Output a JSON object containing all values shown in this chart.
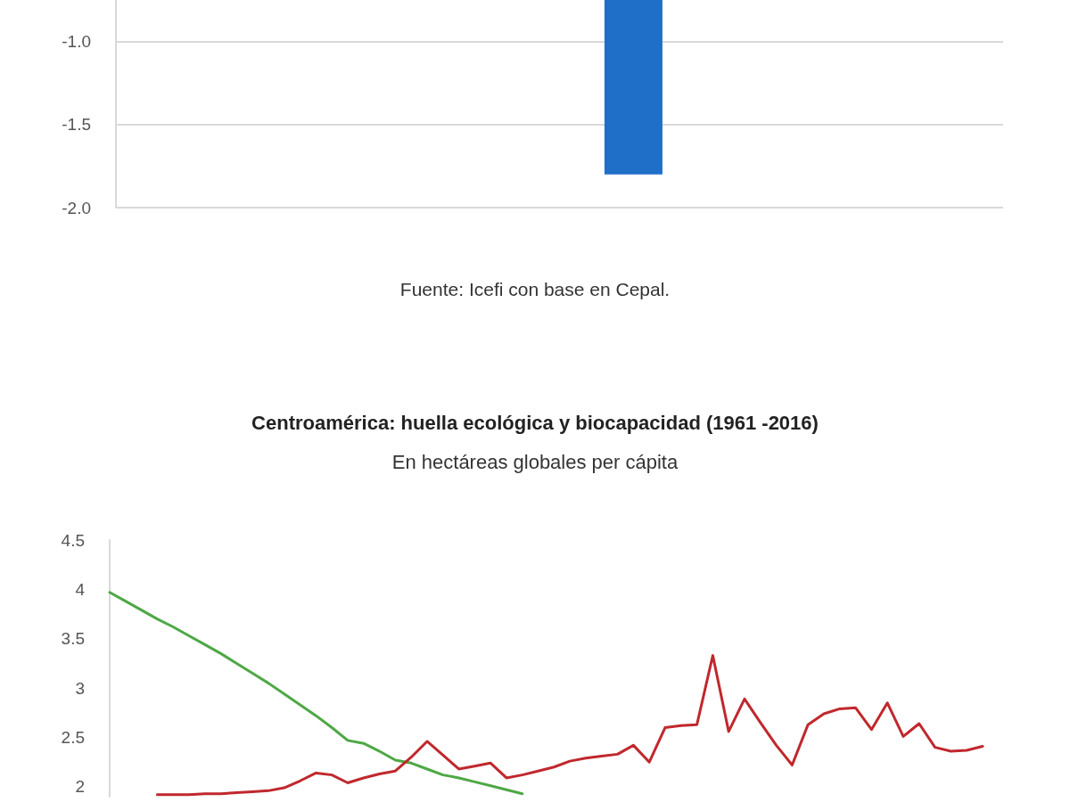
{
  "chart_data": [
    {
      "type": "bar",
      "categories": [
        null,
        null,
        null,
        null,
        null,
        null
      ],
      "values": [
        null,
        null,
        null,
        -1.8,
        null,
        null
      ],
      "color": "#1f6fc8",
      "ylim": [
        -2,
        -0.75
      ],
      "yticks": [
        {
          "value": -2,
          "label": "-2.0"
        },
        {
          "value": -1.5,
          "label": "-1.5"
        },
        {
          "value": -1,
          "label": "-1.0"
        }
      ],
      "grid": "y",
      "tick_labels": "y",
      "annotations": [
        "Fuente: Icefi con base en Cepal."
      ]
    },
    {
      "type": "line",
      "title": "Centroamérica: huella ecológica y biocapacidad (1961 -2016)",
      "subtitle": "En hectáreas globales per cápita",
      "categories": [
        null,
        null,
        null,
        null,
        null,
        null,
        null,
        null,
        null,
        null,
        null,
        null,
        null,
        null,
        null,
        null,
        null,
        null,
        null,
        null,
        null,
        null,
        null,
        null,
        null,
        null,
        null,
        null,
        null,
        null,
        null,
        null,
        null,
        null,
        null,
        null,
        null,
        null,
        null,
        null,
        null,
        null,
        null,
        null,
        null,
        null,
        null,
        null,
        null,
        null,
        null,
        null,
        null,
        null,
        null,
        null
      ],
      "series": [
        {
          "color": "#4ea845",
          "values": [
            3.97,
            3.88,
            3.79,
            3.7,
            3.62,
            3.53,
            3.44,
            3.35,
            3.25,
            3.15,
            3.05,
            2.94,
            2.83,
            2.72,
            2.6,
            2.47,
            2.44,
            2.36,
            2.27,
            2.24,
            2.18,
            2.12,
            2.09,
            2.05,
            2.01,
            1.97,
            1.93,
            null,
            null,
            null,
            null,
            null,
            null,
            null,
            null,
            null,
            null,
            null,
            null,
            null,
            null,
            null,
            null,
            null,
            null,
            null,
            null,
            null,
            null,
            null,
            null,
            null,
            null,
            null,
            null,
            null
          ]
        },
        {
          "color": "#c0282d",
          "values": [
            null,
            null,
            null,
            1.92,
            1.92,
            1.92,
            1.93,
            1.93,
            1.94,
            1.95,
            1.96,
            1.99,
            2.06,
            2.14,
            2.12,
            2.04,
            2.09,
            2.13,
            2.16,
            2.3,
            2.46,
            2.32,
            2.18,
            2.21,
            2.24,
            2.09,
            2.12,
            2.16,
            2.2,
            2.26,
            2.29,
            2.31,
            2.33,
            2.42,
            2.25,
            2.6,
            2.62,
            2.63,
            3.33,
            2.56,
            2.89,
            2.65,
            2.42,
            2.22,
            2.63,
            2.74,
            2.79,
            2.8,
            2.58,
            2.85,
            2.51,
            2.64,
            2.4,
            2.36,
            2.37,
            2.41
          ]
        }
      ],
      "ylim": [
        1.9,
        4.5
      ],
      "yticks": [
        2,
        2.5,
        3,
        3.5,
        4,
        4.5
      ],
      "tick_labels": "y",
      "marker": "none",
      "line_style": "solid"
    }
  ]
}
